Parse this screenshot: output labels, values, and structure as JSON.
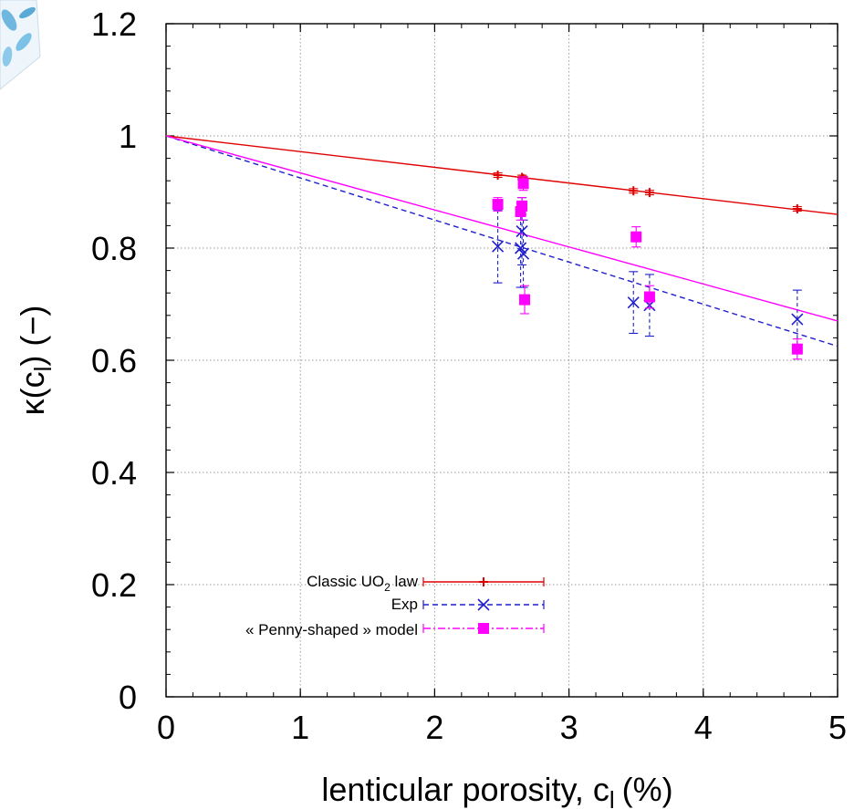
{
  "chart_data": {
    "type": "scatter",
    "xlabel": {
      "main": "lenticular porosity, c",
      "sub": "l",
      "unit": "(%)"
    },
    "ylabel": {
      "main": "κ(c",
      "sub": "l",
      "tail": ")  (−)"
    },
    "xlim": [
      0,
      5
    ],
    "ylim": [
      0,
      1.2
    ],
    "x_ticks": [
      "0",
      "1",
      "2",
      "3",
      "4",
      "5"
    ],
    "y_ticks": [
      "0",
      "0.2",
      "0.4",
      "0.6",
      "0.8",
      "1",
      "1.2"
    ],
    "grid": true,
    "legend_position": "bottom-left",
    "series": [
      {
        "name": "Classic UO2 law",
        "legend_main": "Classic UO",
        "legend_sub": "2",
        "legend_tail": " law",
        "color": "#e00000",
        "line": "solid",
        "marker": "plus",
        "fit": {
          "x": [
            0,
            5
          ],
          "y": [
            1.0,
            0.86
          ]
        },
        "points": [
          {
            "x": 2.47,
            "y": 0.93,
            "err": 0.004
          },
          {
            "x": 2.65,
            "y": 0.926,
            "err": 0.004
          },
          {
            "x": 2.66,
            "y": 0.924,
            "err": 0.004
          },
          {
            "x": 3.48,
            "y": 0.902,
            "err": 0.004
          },
          {
            "x": 3.6,
            "y": 0.899,
            "err": 0.004
          },
          {
            "x": 4.7,
            "y": 0.87,
            "err": 0.004
          }
        ]
      },
      {
        "name": "Exp",
        "legend_main": "Exp",
        "color": "#1f1fcc",
        "line": "dashed",
        "marker": "x",
        "fit": {
          "x": [
            0,
            5
          ],
          "y": [
            1.0,
            0.625
          ]
        },
        "points": [
          {
            "x": 2.47,
            "y": 0.803,
            "err": 0.065
          },
          {
            "x": 2.64,
            "y": 0.8,
            "err": 0.07
          },
          {
            "x": 2.65,
            "y": 0.83,
            "err": 0.06
          },
          {
            "x": 2.66,
            "y": 0.79,
            "err": 0.06
          },
          {
            "x": 3.48,
            "y": 0.703,
            "err": 0.055
          },
          {
            "x": 3.6,
            "y": 0.698,
            "err": 0.055
          },
          {
            "x": 4.7,
            "y": 0.673,
            "err": 0.052
          }
        ]
      },
      {
        "name": "« Penny-shaped » model",
        "legend_main": "« Penny-shaped » model",
        "color": "#ff00ff",
        "line": "solid",
        "marker": "square",
        "fit": {
          "x": [
            0,
            5
          ],
          "y": [
            1.0,
            0.67
          ]
        },
        "points": [
          {
            "x": 2.47,
            "y": 0.878,
            "err": 0.012
          },
          {
            "x": 2.64,
            "y": 0.865,
            "err": 0.015
          },
          {
            "x": 2.65,
            "y": 0.875,
            "err": 0.015
          },
          {
            "x": 2.66,
            "y": 0.915,
            "err": 0.012
          },
          {
            "x": 2.67,
            "y": 0.708,
            "err": 0.025
          },
          {
            "x": 3.5,
            "y": 0.82,
            "err": 0.018
          },
          {
            "x": 3.6,
            "y": 0.713,
            "err": 0.02
          },
          {
            "x": 4.7,
            "y": 0.62,
            "err": 0.018
          }
        ]
      }
    ]
  }
}
